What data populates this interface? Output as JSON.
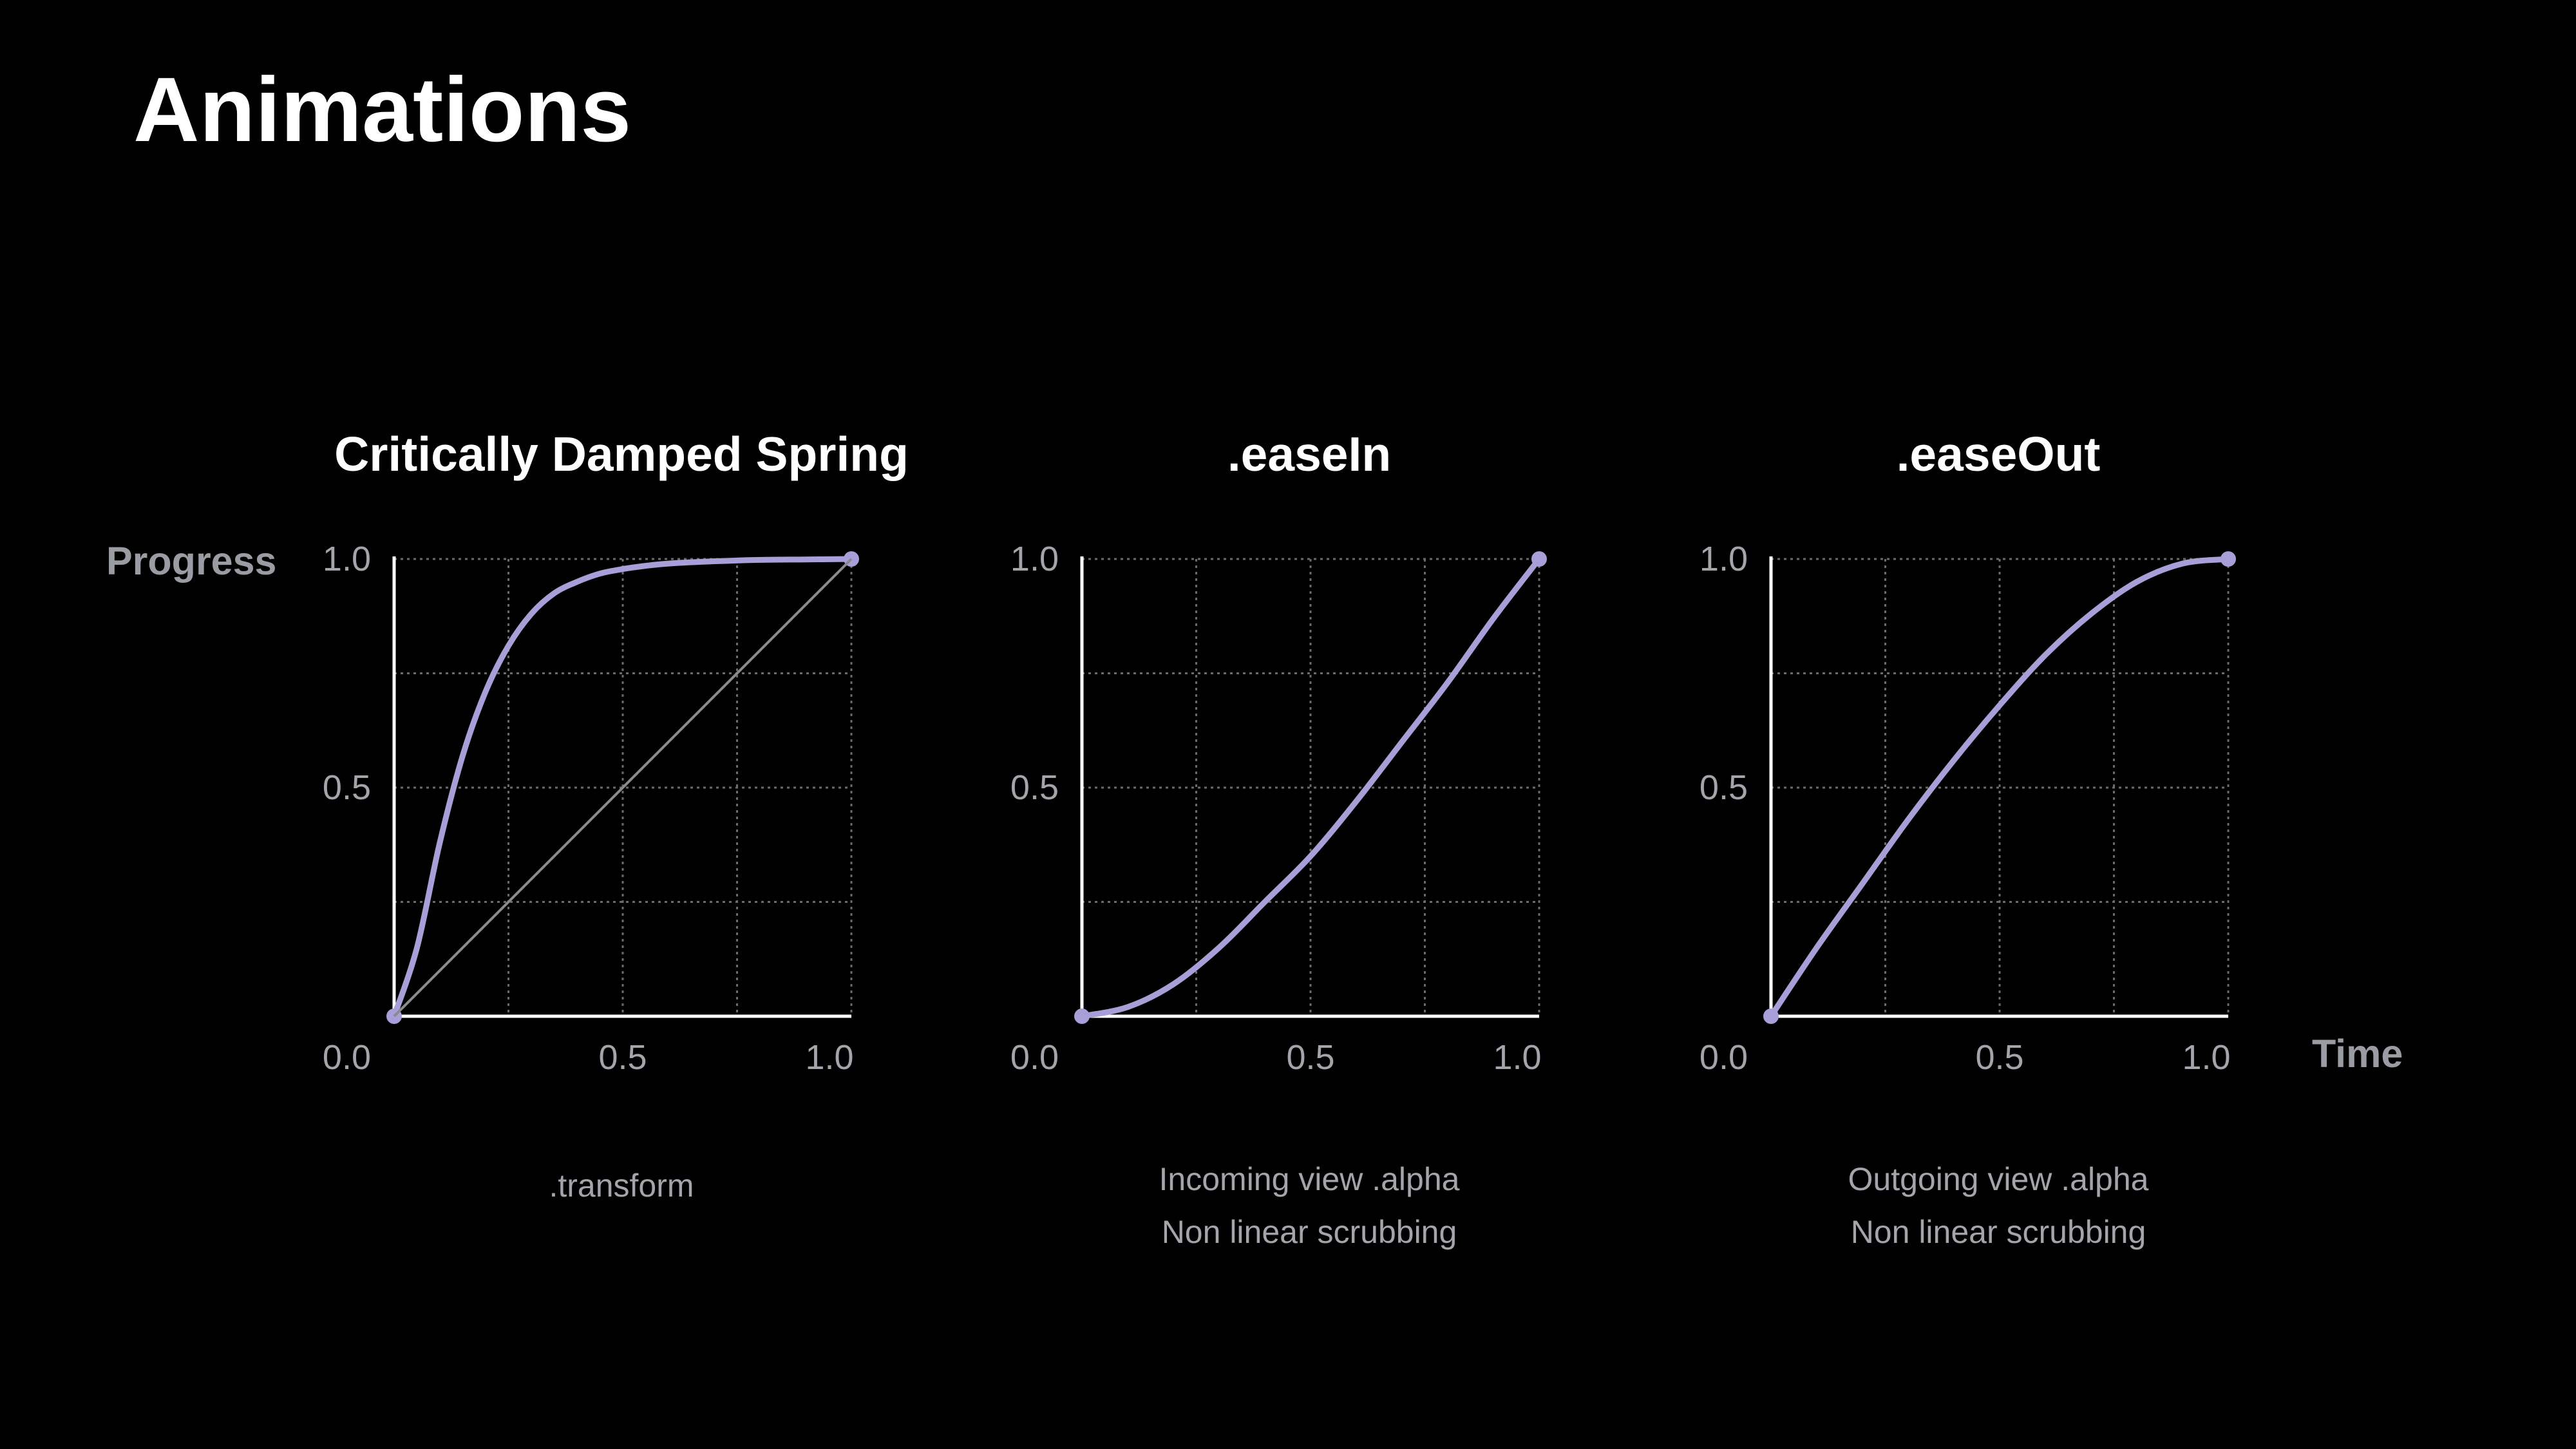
{
  "page": {
    "title": "Animations"
  },
  "axes": {
    "y_name": "Progress",
    "x_name": "Time"
  },
  "colors": {
    "background": "#000000",
    "curve": "#a99fd8",
    "grid": "#6b6b6b",
    "axis": "#ffffff",
    "reference": "#8a8a8a",
    "ticks": "#a3a5ab"
  },
  "chart_data": [
    {
      "type": "line",
      "title": "Critically Damped Spring",
      "captions": [
        ".transform"
      ],
      "xlim": [
        0,
        1
      ],
      "ylim": [
        0,
        1
      ],
      "x_ticks": [
        "0.0",
        "0.5",
        "1.0"
      ],
      "y_ticks": [
        "0.0",
        "0.5",
        "1.0"
      ],
      "grid": true,
      "series": [
        {
          "x": [
            0,
            0.05,
            0.1,
            0.15,
            0.2,
            0.25,
            0.3,
            0.35,
            0.4,
            0.45,
            0.5,
            0.55,
            0.6,
            0.7,
            0.8,
            0.9,
            1.0
          ],
          "y": [
            0,
            0.15,
            0.38,
            0.57,
            0.71,
            0.81,
            0.88,
            0.925,
            0.95,
            0.968,
            0.978,
            0.985,
            0.99,
            0.995,
            0.998,
            0.999,
            1.0
          ]
        },
        {
          "x": [
            0,
            1
          ],
          "y": [
            0,
            1
          ]
        }
      ]
    },
    {
      "type": "line",
      "title": ".easeIn",
      "captions": [
        "Incoming view .alpha",
        "Non linear scrubbing"
      ],
      "xlim": [
        0,
        1
      ],
      "ylim": [
        0,
        1
      ],
      "x_ticks": [
        "0.0",
        "0.5",
        "1.0"
      ],
      "y_ticks": [
        "0.0",
        "0.5",
        "1.0"
      ],
      "grid": true,
      "series": [
        {
          "x": [
            0,
            0.1,
            0.2,
            0.3,
            0.4,
            0.5,
            0.6,
            0.7,
            0.8,
            0.9,
            1.0
          ],
          "y": [
            0,
            0.02,
            0.07,
            0.15,
            0.25,
            0.35,
            0.47,
            0.6,
            0.73,
            0.87,
            1.0
          ]
        }
      ]
    },
    {
      "type": "line",
      "title": ".easeOut",
      "captions": [
        "Outgoing view .alpha",
        "Non linear scrubbing"
      ],
      "xlim": [
        0,
        1
      ],
      "ylim": [
        0,
        1
      ],
      "x_ticks": [
        "0.0",
        "0.5",
        "1.0"
      ],
      "y_ticks": [
        "0.0",
        "0.5",
        "1.0"
      ],
      "grid": true,
      "series": [
        {
          "x": [
            0,
            0.1,
            0.2,
            0.3,
            0.4,
            0.5,
            0.6,
            0.7,
            0.8,
            0.9,
            1.0
          ],
          "y": [
            0,
            0.15,
            0.29,
            0.43,
            0.56,
            0.68,
            0.79,
            0.88,
            0.95,
            0.99,
            1.0
          ]
        }
      ]
    }
  ]
}
